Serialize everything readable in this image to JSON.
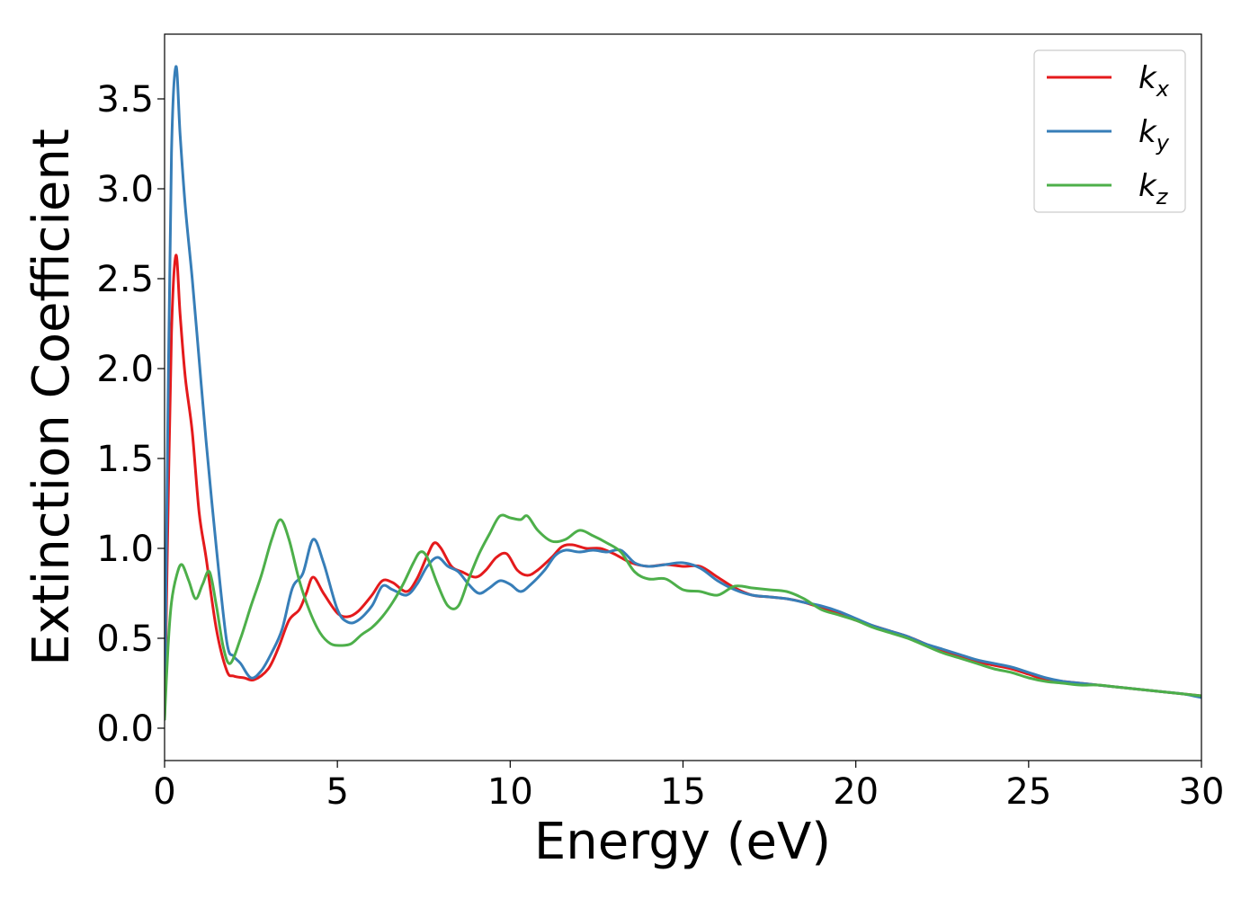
{
  "chart_data": {
    "type": "line",
    "xlabel": "Energy (eV)",
    "ylabel": "Extinction Coefficient",
    "xlim": [
      0,
      30
    ],
    "ylim": [
      -0.18,
      3.86
    ],
    "xticks": [
      0,
      5,
      10,
      15,
      20,
      25,
      30
    ],
    "yticks": [
      0.0,
      0.5,
      1.0,
      1.5,
      2.0,
      2.5,
      3.0,
      3.5
    ],
    "xtick_labels": [
      "0",
      "5",
      "10",
      "15",
      "20",
      "25",
      "30"
    ],
    "ytick_labels": [
      "0.0",
      "0.5",
      "1.0",
      "1.5",
      "2.0",
      "2.5",
      "3.0",
      "3.5"
    ],
    "grid": false,
    "legend_position": "top-right",
    "series": [
      {
        "name": "k_x",
        "label_main": "k",
        "label_sub": "x",
        "color": "#e41a1c",
        "x": [
          0,
          0.1,
          0.2,
          0.33,
          0.45,
          0.6,
          0.8,
          1.0,
          1.2,
          1.5,
          1.8,
          2.0,
          2.3,
          2.6,
          3.0,
          3.3,
          3.6,
          3.9,
          4.1,
          4.3,
          4.6,
          5.0,
          5.3,
          5.6,
          6.0,
          6.3,
          6.6,
          7.0,
          7.3,
          7.6,
          7.8,
          8.0,
          8.3,
          8.6,
          9.0,
          9.3,
          9.6,
          9.9,
          10.2,
          10.5,
          10.8,
          11.2,
          11.5,
          11.8,
          12.2,
          12.6,
          13.0,
          13.5,
          14.0,
          14.5,
          15.0,
          15.5,
          16.0,
          16.5,
          17.0,
          17.5,
          18.0,
          18.5,
          19.0,
          19.5,
          20.0,
          20.5,
          21.0,
          21.5,
          22.0,
          22.5,
          23.0,
          23.5,
          24.0,
          24.5,
          25.0,
          25.5,
          26.0,
          26.5,
          27.0,
          27.5,
          28.0,
          28.5,
          29.0,
          29.5,
          30.0
        ],
        "values": [
          0.05,
          1.2,
          2.2,
          2.63,
          2.3,
          1.95,
          1.65,
          1.2,
          0.95,
          0.55,
          0.32,
          0.29,
          0.28,
          0.27,
          0.33,
          0.45,
          0.6,
          0.66,
          0.75,
          0.84,
          0.75,
          0.64,
          0.62,
          0.65,
          0.74,
          0.82,
          0.81,
          0.76,
          0.83,
          0.96,
          1.03,
          1.0,
          0.9,
          0.87,
          0.84,
          0.88,
          0.95,
          0.97,
          0.88,
          0.85,
          0.88,
          0.95,
          1.01,
          1.02,
          1.0,
          1.0,
          0.97,
          0.92,
          0.9,
          0.91,
          0.9,
          0.9,
          0.84,
          0.78,
          0.74,
          0.73,
          0.72,
          0.7,
          0.67,
          0.64,
          0.6,
          0.57,
          0.54,
          0.51,
          0.47,
          0.43,
          0.4,
          0.37,
          0.35,
          0.33,
          0.3,
          0.27,
          0.26,
          0.25,
          0.24,
          0.23,
          0.22,
          0.21,
          0.2,
          0.19,
          0.18
        ]
      },
      {
        "name": "k_y",
        "label_main": "k",
        "label_sub": "y",
        "color": "#377eb8",
        "x": [
          0,
          0.1,
          0.2,
          0.33,
          0.45,
          0.6,
          0.8,
          1.0,
          1.2,
          1.5,
          1.8,
          2.0,
          2.2,
          2.5,
          2.8,
          3.1,
          3.4,
          3.7,
          4.0,
          4.3,
          4.6,
          5.0,
          5.3,
          5.6,
          6.0,
          6.3,
          6.6,
          7.0,
          7.3,
          7.6,
          7.9,
          8.2,
          8.5,
          8.8,
          9.1,
          9.4,
          9.7,
          10.0,
          10.3,
          10.6,
          11.0,
          11.3,
          11.6,
          12.0,
          12.4,
          12.8,
          13.2,
          13.6,
          14.0,
          14.5,
          15.0,
          15.5,
          16.0,
          16.5,
          17.0,
          17.5,
          18.0,
          18.5,
          19.0,
          19.5,
          20.0,
          20.5,
          21.0,
          21.5,
          22.0,
          22.5,
          23.0,
          23.5,
          24.0,
          24.5,
          25.0,
          25.5,
          26.0,
          26.5,
          27.0,
          27.5,
          28.0,
          28.5,
          29.0,
          29.5,
          30.0
        ],
        "values": [
          0.05,
          1.8,
          3.2,
          3.68,
          3.3,
          2.9,
          2.5,
          2.05,
          1.6,
          1.0,
          0.48,
          0.4,
          0.36,
          0.28,
          0.32,
          0.42,
          0.55,
          0.78,
          0.86,
          1.05,
          0.92,
          0.66,
          0.59,
          0.6,
          0.68,
          0.79,
          0.77,
          0.74,
          0.8,
          0.9,
          0.95,
          0.9,
          0.87,
          0.8,
          0.75,
          0.78,
          0.82,
          0.8,
          0.76,
          0.8,
          0.88,
          0.96,
          0.99,
          0.98,
          0.99,
          0.98,
          0.99,
          0.92,
          0.9,
          0.91,
          0.92,
          0.89,
          0.82,
          0.77,
          0.74,
          0.73,
          0.72,
          0.7,
          0.68,
          0.65,
          0.61,
          0.57,
          0.54,
          0.51,
          0.47,
          0.44,
          0.41,
          0.38,
          0.36,
          0.34,
          0.31,
          0.28,
          0.26,
          0.25,
          0.24,
          0.23,
          0.22,
          0.21,
          0.2,
          0.19,
          0.17
        ]
      },
      {
        "name": "k_z",
        "label_main": "k",
        "label_sub": "z",
        "color": "#4daf4a",
        "x": [
          0,
          0.1,
          0.2,
          0.35,
          0.5,
          0.7,
          0.9,
          1.1,
          1.3,
          1.5,
          1.7,
          1.9,
          2.2,
          2.5,
          2.8,
          3.1,
          3.35,
          3.6,
          3.9,
          4.2,
          4.5,
          4.8,
          5.1,
          5.4,
          5.7,
          6.0,
          6.3,
          6.6,
          6.9,
          7.2,
          7.4,
          7.6,
          7.9,
          8.2,
          8.5,
          8.8,
          9.1,
          9.4,
          9.7,
          10.0,
          10.3,
          10.5,
          10.8,
          11.2,
          11.6,
          12.0,
          12.4,
          12.8,
          13.2,
          13.6,
          14.0,
          14.5,
          15.0,
          15.5,
          16.0,
          16.5,
          17.0,
          17.5,
          18.0,
          18.5,
          19.0,
          19.5,
          20.0,
          20.5,
          21.0,
          21.5,
          22.0,
          22.5,
          23.0,
          23.5,
          24.0,
          24.5,
          25.0,
          25.5,
          26.0,
          26.5,
          27.0,
          27.5,
          28.0,
          28.5,
          29.0,
          29.5,
          30.0
        ],
        "values": [
          0.05,
          0.45,
          0.7,
          0.85,
          0.91,
          0.82,
          0.72,
          0.8,
          0.87,
          0.68,
          0.45,
          0.36,
          0.5,
          0.68,
          0.85,
          1.05,
          1.16,
          1.05,
          0.82,
          0.65,
          0.53,
          0.47,
          0.46,
          0.47,
          0.52,
          0.56,
          0.62,
          0.7,
          0.8,
          0.92,
          0.98,
          0.95,
          0.8,
          0.68,
          0.68,
          0.83,
          0.97,
          1.08,
          1.18,
          1.17,
          1.16,
          1.18,
          1.1,
          1.04,
          1.05,
          1.1,
          1.07,
          1.03,
          0.98,
          0.87,
          0.83,
          0.83,
          0.77,
          0.76,
          0.74,
          0.79,
          0.78,
          0.77,
          0.76,
          0.72,
          0.66,
          0.63,
          0.6,
          0.56,
          0.53,
          0.5,
          0.46,
          0.42,
          0.39,
          0.36,
          0.33,
          0.31,
          0.28,
          0.26,
          0.25,
          0.24,
          0.24,
          0.23,
          0.22,
          0.21,
          0.2,
          0.19,
          0.18
        ]
      }
    ]
  }
}
